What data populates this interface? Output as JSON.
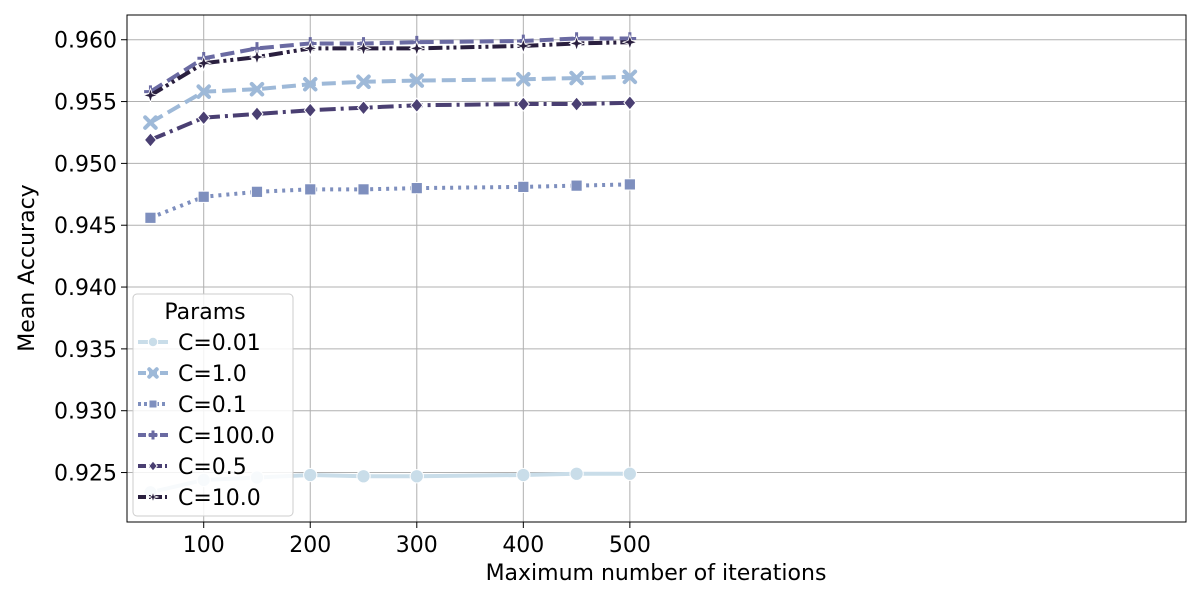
{
  "chart_data": {
    "type": "line",
    "title": "",
    "xlabel": "Maximum number of iterations",
    "ylabel": "Mean Accuracy",
    "xlim": [
      28,
      1022
    ],
    "ylim": [
      0.921,
      0.962
    ],
    "x_ticks": [
      100,
      200,
      300,
      400,
      500
    ],
    "y_ticks": [
      0.925,
      0.93,
      0.935,
      0.94,
      0.945,
      0.95,
      0.955,
      0.96
    ],
    "grid": true,
    "legend": {
      "title": "Params",
      "placement": "lower-left"
    },
    "x": [
      50,
      100,
      150,
      200,
      250,
      300,
      400,
      450,
      500
    ],
    "series": [
      {
        "name": "C=0.01",
        "color": "#c9dde9",
        "marker": "circle",
        "dash": "solid",
        "values": [
          0.9234,
          0.9244,
          0.9246,
          0.9248,
          0.9247,
          0.9247,
          0.9248,
          0.9249,
          0.9249
        ]
      },
      {
        "name": "C=1.0",
        "color": "#9eb9d8",
        "marker": "x",
        "dash": "dashed",
        "values": [
          0.9533,
          0.9558,
          0.956,
          0.9564,
          0.9566,
          0.9567,
          0.9568,
          0.9569,
          0.957
        ]
      },
      {
        "name": "C=0.1",
        "color": "#7e8fbe",
        "marker": "square",
        "dash": "dotted",
        "values": [
          0.9456,
          0.9473,
          0.9477,
          0.9479,
          0.9479,
          0.948,
          0.9481,
          0.9482,
          0.9483
        ]
      },
      {
        "name": "C=100.0",
        "color": "#6a6aa2",
        "marker": "plus",
        "dash": "dashed",
        "values": [
          0.9558,
          0.9585,
          0.9593,
          0.9597,
          0.9597,
          0.9598,
          0.9599,
          0.9601,
          0.9601
        ]
      },
      {
        "name": "C=0.5",
        "color": "#4a3f72",
        "marker": "diamond",
        "dash": "dashdot",
        "values": [
          0.9519,
          0.9537,
          0.954,
          0.9543,
          0.9545,
          0.9547,
          0.9548,
          0.9548,
          0.9549
        ]
      },
      {
        "name": "C=10.0",
        "color": "#2a1f3f",
        "marker": "star",
        "dash": "dashdotdot",
        "values": [
          0.9555,
          0.9581,
          0.9586,
          0.9593,
          0.9593,
          0.9593,
          0.9595,
          0.9597,
          0.9598
        ]
      }
    ]
  }
}
